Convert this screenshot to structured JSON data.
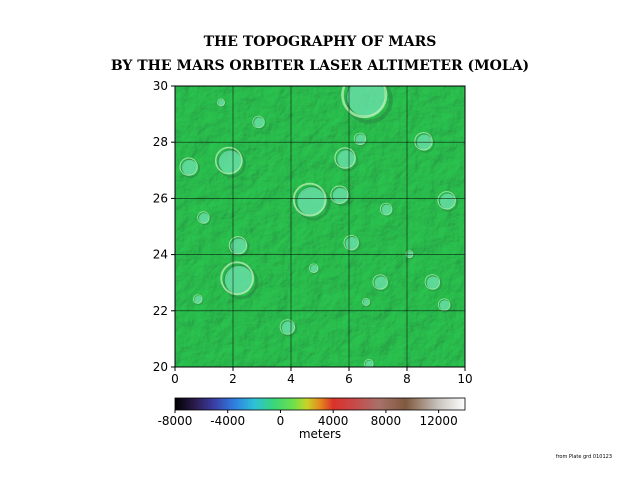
{
  "title_line1": "THE TOPOGRAPHY OF MARS",
  "title_line2": "BY THE MARS ORBITER LASER ALTIMETER (MOLA)",
  "map": {
    "x_range": [
      0,
      10
    ],
    "y_range": [
      20,
      30
    ],
    "x_ticks": [
      0,
      2,
      4,
      6,
      8,
      10
    ],
    "y_ticks": [
      20,
      22,
      24,
      26,
      28,
      30
    ],
    "x_tick_labels": [
      "0",
      "2",
      "4",
      "6",
      "8",
      "10"
    ],
    "y_tick_labels": [
      "20",
      "22",
      "24",
      "26",
      "28",
      "30"
    ],
    "base_color": "#3fd56a",
    "craters": [
      {
        "x": 6.6,
        "y": 29.6,
        "r": 0.75
      },
      {
        "x": 1.9,
        "y": 27.3,
        "r": 0.45
      },
      {
        "x": 5.9,
        "y": 27.4,
        "r": 0.35
      },
      {
        "x": 4.7,
        "y": 25.9,
        "r": 0.55
      },
      {
        "x": 5.7,
        "y": 26.1,
        "r": 0.3
      },
      {
        "x": 9.4,
        "y": 25.9,
        "r": 0.3
      },
      {
        "x": 2.2,
        "y": 24.3,
        "r": 0.3
      },
      {
        "x": 6.1,
        "y": 24.4,
        "r": 0.25
      },
      {
        "x": 2.2,
        "y": 23.1,
        "r": 0.55
      },
      {
        "x": 7.1,
        "y": 23.0,
        "r": 0.25
      },
      {
        "x": 8.9,
        "y": 23.0,
        "r": 0.25
      },
      {
        "x": 9.3,
        "y": 22.2,
        "r": 0.2
      },
      {
        "x": 3.9,
        "y": 21.4,
        "r": 0.25
      },
      {
        "x": 8.6,
        "y": 28.0,
        "r": 0.3
      },
      {
        "x": 6.4,
        "y": 28.1,
        "r": 0.2
      },
      {
        "x": 0.5,
        "y": 27.1,
        "r": 0.3
      },
      {
        "x": 2.9,
        "y": 28.7,
        "r": 0.2
      },
      {
        "x": 1.0,
        "y": 25.3,
        "r": 0.2
      },
      {
        "x": 7.3,
        "y": 25.6,
        "r": 0.2
      },
      {
        "x": 4.8,
        "y": 23.5,
        "r": 0.15
      },
      {
        "x": 0.8,
        "y": 22.4,
        "r": 0.15
      },
      {
        "x": 6.6,
        "y": 22.3,
        "r": 0.12
      },
      {
        "x": 8.1,
        "y": 24.0,
        "r": 0.12
      },
      {
        "x": 1.6,
        "y": 29.4,
        "r": 0.12
      },
      {
        "x": 6.7,
        "y": 20.1,
        "r": 0.15
      }
    ]
  },
  "colorbar": {
    "min": -8000,
    "max": 14000,
    "tick_values": [
      -8000,
      -4000,
      0,
      4000,
      8000,
      12000
    ],
    "tick_labels": [
      "-8000",
      "-4000",
      "0",
      "4000",
      "8000",
      "12000"
    ],
    "unit_label": "meters",
    "stops": [
      {
        "value": -8000,
        "color": "#000000"
      },
      {
        "value": -6500,
        "color": "#2a1b4c"
      },
      {
        "value": -5000,
        "color": "#3b3fa6"
      },
      {
        "value": -3500,
        "color": "#2f7fe0"
      },
      {
        "value": -2000,
        "color": "#2dc0d8"
      },
      {
        "value": -500,
        "color": "#39d67a"
      },
      {
        "value": 1000,
        "color": "#6fe04a"
      },
      {
        "value": 2000,
        "color": "#c9d428"
      },
      {
        "value": 3000,
        "color": "#e5891e"
      },
      {
        "value": 4000,
        "color": "#d9322a"
      },
      {
        "value": 5500,
        "color": "#c94848"
      },
      {
        "value": 7500,
        "color": "#a8716a"
      },
      {
        "value": 9500,
        "color": "#7f5a3f"
      },
      {
        "value": 12000,
        "color": "#c9c4bf"
      },
      {
        "value": 14000,
        "color": "#ffffff"
      }
    ]
  },
  "source_note": "from Plate grd 010123"
}
